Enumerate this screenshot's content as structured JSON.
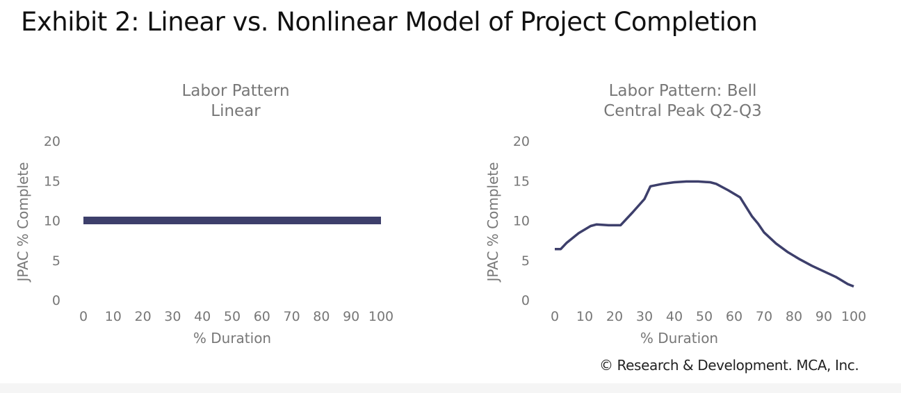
{
  "page": {
    "title": "Exhibit 2: Linear vs. Nonlinear Model of Project Completion",
    "footer": "© Research & Development. MCA, Inc."
  },
  "colors": {
    "line": "#3d3f6b",
    "text": "#777777",
    "title": "#111111"
  },
  "chart_data": [
    {
      "type": "line",
      "title": [
        "Labor Pattern",
        "Linear"
      ],
      "xlabel": "% Duration",
      "ylabel": "JPAC % Complete",
      "xticks": [
        0,
        10,
        20,
        30,
        40,
        50,
        60,
        70,
        80,
        90,
        100
      ],
      "yticks": [
        0,
        5,
        10,
        15,
        20
      ],
      "xlim": [
        0,
        100
      ],
      "ylim": [
        0,
        20
      ],
      "grid": false,
      "series": [
        {
          "x": [
            0,
            100
          ],
          "y": [
            10,
            10
          ],
          "color": "#3d3f6b"
        }
      ]
    },
    {
      "type": "line",
      "title": [
        "Labor Pattern: Bell",
        "Central Peak Q2-Q3"
      ],
      "xlabel": "% Duration",
      "ylabel": "JPAC % Complete",
      "xticks": [
        0,
        10,
        20,
        30,
        40,
        50,
        60,
        70,
        80,
        90,
        100
      ],
      "yticks": [
        0,
        5,
        10,
        15,
        20
      ],
      "xlim": [
        0,
        100
      ],
      "ylim": [
        0,
        20
      ],
      "grid": false,
      "series": [
        {
          "x": [
            0,
            2,
            4,
            8,
            12,
            14,
            18,
            22,
            26,
            30,
            32,
            36,
            40,
            44,
            48,
            52,
            54,
            58,
            62,
            66,
            68,
            70,
            74,
            78,
            82,
            86,
            90,
            94,
            98,
            100
          ],
          "y": [
            6.4,
            6.4,
            7.2,
            8.4,
            9.3,
            9.5,
            9.4,
            9.4,
            11.0,
            12.7,
            14.3,
            14.6,
            14.8,
            14.9,
            14.9,
            14.8,
            14.6,
            13.8,
            12.9,
            10.5,
            9.6,
            8.5,
            7.1,
            6.0,
            5.1,
            4.3,
            3.6,
            2.9,
            2.0,
            1.7
          ],
          "color": "#3d3f6b"
        }
      ]
    }
  ]
}
